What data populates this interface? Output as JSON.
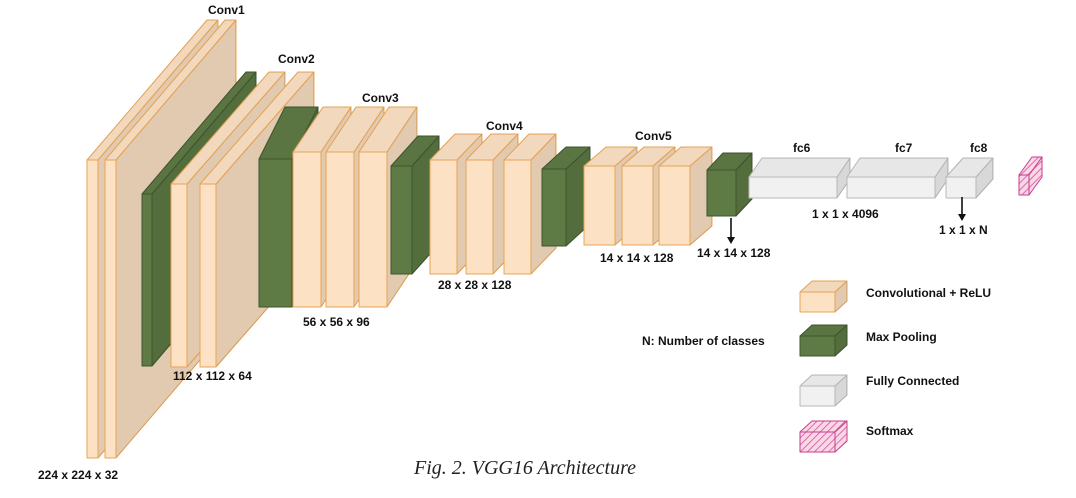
{
  "diagram": {
    "caption": "Fig. 2. VGG16 Architecture",
    "stages": {
      "conv1": "Conv1",
      "conv2": "Conv2",
      "conv3": "Conv3",
      "conv4": "Conv4",
      "conv5": "Conv5",
      "fc6": "fc6",
      "fc7": "fc7",
      "fc8": "fc8"
    },
    "dims": {
      "d1": "224 x 224 x 32",
      "d2": "112 x 112 x 64",
      "d3": "56 x 56 x 96",
      "d4": "28 x 28 x 128",
      "d5": "14 x 14 x 128",
      "d6": "14 x 14 x 128",
      "d7": "1 x 1 x 4096",
      "d8": "1 x 1 x N"
    },
    "note": "N: Number of classes",
    "legend": [
      {
        "label": "Convolutional + ReLU",
        "color": "#fce1c5"
      },
      {
        "label": "Max Pooling",
        "color": "#5e7a45"
      },
      {
        "label": "Fully Connected",
        "color": "#f1f1f1"
      },
      {
        "label": "Softmax",
        "color": "#f6c5dc"
      }
    ],
    "colors": {
      "conv_fill": "#fce1c5",
      "conv_stroke": "#e8a455",
      "pool_fill": "#5e7a45",
      "pool_stroke": "#3f5530",
      "fc_fill": "#f1f1f1",
      "fc_stroke": "#b8b8b8",
      "softmax_fill": "#f6c5dc",
      "softmax_stroke": "#c83e8a"
    }
  }
}
